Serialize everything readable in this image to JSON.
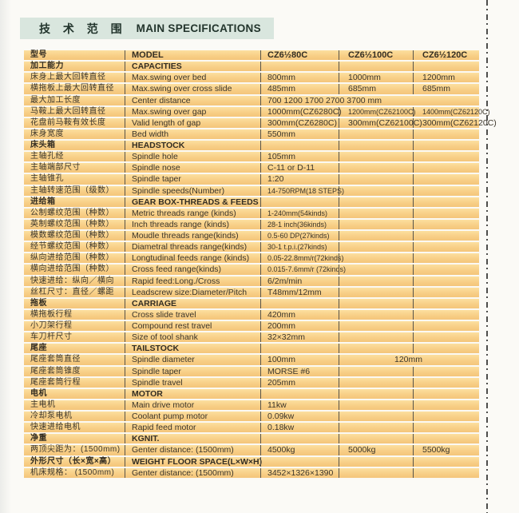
{
  "title": {
    "cn": "技 术 范 围",
    "en": "MAIN SPECIFICATIONS"
  },
  "colors": {
    "row_orange": "#f8cf87",
    "row_separator": "#fbf9f3",
    "column_rule": "#58544a",
    "title_band": "#d9e6de",
    "text": "#3b352a"
  },
  "table": {
    "rows": [
      {
        "type": "header",
        "cn": "型号",
        "en": "MODEL",
        "v1": "CZ6½80C",
        "v2": "CZ6½100C",
        "v3": "CZ6½120C"
      },
      {
        "type": "section",
        "cn": "加工能力",
        "en": "CAPACITIES",
        "v1": "",
        "v2": "",
        "v3": ""
      },
      {
        "type": "data",
        "cn": "床身上最大回转直径",
        "en": "Max.swing over bed",
        "v1": "800mm",
        "v2": "1000mm",
        "v3": "1200mm"
      },
      {
        "type": "data",
        "cn": "横拖板上最大回转直径",
        "en": "Max.swing over cross slide",
        "v1": "485mm",
        "v2": "685mm",
        "v3": "685mm"
      },
      {
        "type": "span",
        "cn": "最大加工长度",
        "en": "Center distance",
        "span": "700  1200  1700  2700  3700  mm"
      },
      {
        "type": "data",
        "cn": "马鞍上最大回转直径",
        "en": "Max.swing over gap",
        "v1": "1000mm(CZ6280C)",
        "v2": "1200mm(CZ62100C)",
        "v3": "1400mm(CZ62120C)"
      },
      {
        "type": "data",
        "cn": "花盘前马鞍有效长度",
        "en": "Valid length of gap",
        "v1": "300mm(CZ6280C)",
        "v2": "300mm(CZ62100C)",
        "v3": "300mm(CZ62120C)"
      },
      {
        "type": "data",
        "cn": "床身宽度",
        "en": "Bed width",
        "v1": "550mm",
        "v2": "",
        "v3": ""
      },
      {
        "type": "section",
        "cn": "床头箱",
        "en": "HEADSTOCK",
        "v1": "",
        "v2": "",
        "v3": ""
      },
      {
        "type": "data",
        "cn": "主轴孔经",
        "en": "Spindle hole",
        "v1": "105mm",
        "v2": "",
        "v3": ""
      },
      {
        "type": "data",
        "cn": "主轴端部尺寸",
        "en": "Spindle nose",
        "v1": "C-11 or D-11",
        "v2": "",
        "v3": ""
      },
      {
        "type": "data",
        "cn": "主轴锥孔",
        "en": "Spindle taper",
        "v1": "1:20",
        "v2": "",
        "v3": ""
      },
      {
        "type": "data",
        "cn": "主轴转速范围（级数）",
        "en": "Spindle speeds(Number)",
        "v1": "14-750RPM(18 STEPS)",
        "v2": "",
        "v3": ""
      },
      {
        "type": "section",
        "cn": "进给箱",
        "en": "GEAR BOX-THREADS & FEEDS",
        "v1": "",
        "v2": "",
        "v3": ""
      },
      {
        "type": "data",
        "cn": "公制螺纹范围（种数）",
        "en": "Metric threads range (kinds)",
        "v1": "1-240mm(54kinds)",
        "v2": "",
        "v3": ""
      },
      {
        "type": "data",
        "cn": "英制螺纹范围（种数）",
        "en": "Inch threads range (kinds)",
        "v1": "28-1 inch(36kinds)",
        "v2": "",
        "v3": ""
      },
      {
        "type": "data",
        "cn": "模数螺纹范围（种数）",
        "en": "Moudle threads range(kinds)",
        "v1": "0.5-60 DP(27kinds)",
        "v2": "",
        "v3": ""
      },
      {
        "type": "data",
        "cn": "经节螺纹范围（种数）",
        "en": "Diametral threads range(kinds)",
        "v1": "30-1 t.p.i.(27kinds)",
        "v2": "",
        "v3": ""
      },
      {
        "type": "data",
        "cn": "纵向进给范围（种数）",
        "en": "Longtudinal feeds range (kinds)",
        "v1": "0.05-22.8mm/r(72kinds)",
        "v2": "",
        "v3": ""
      },
      {
        "type": "data",
        "cn": "横向进给范围（种数）",
        "en": "Cross feed range(kinds)",
        "v1": "0.015-7.6mm/r (72kinds)",
        "v2": "",
        "v3": ""
      },
      {
        "type": "data",
        "cn": "快速进给：纵向／横向",
        "en": "Rapid feed:Long./Cross",
        "v1": "6/2m/min",
        "v2": "",
        "v3": ""
      },
      {
        "type": "data",
        "cn": "丝杠尺寸：直径／螺距",
        "en": "Leadscrew size:Diameter/Pitch",
        "v1": "T48mm/12mm",
        "v2": "",
        "v3": ""
      },
      {
        "type": "section",
        "cn": "拖板",
        "en": "CARRIAGE",
        "v1": "",
        "v2": "",
        "v3": ""
      },
      {
        "type": "data",
        "cn": "横拖板行程",
        "en": "Cross slide travel",
        "v1": "420mm",
        "v2": "",
        "v3": ""
      },
      {
        "type": "data",
        "cn": "小刀架行程",
        "en": "Compound rest travel",
        "v1": "200mm",
        "v2": "",
        "v3": ""
      },
      {
        "type": "data",
        "cn": "车刀杆尺寸",
        "en": "Size of tool shank",
        "v1": "32×32mm",
        "v2": "",
        "v3": ""
      },
      {
        "type": "section",
        "cn": "尾座",
        "en": "TAILSTOCK",
        "v1": "",
        "v2": "",
        "v3": ""
      },
      {
        "type": "span23",
        "cn": "尾座套筒直径",
        "en": "Spindle diameter",
        "v1": "100mm",
        "span23": "120mm"
      },
      {
        "type": "data",
        "cn": "尾座套筒锥度",
        "en": "Spindle taper",
        "v1": "MORSE #6",
        "v2": "",
        "v3": ""
      },
      {
        "type": "data",
        "cn": "尾座套筒行程",
        "en": "Spindle travel",
        "v1": "205mm",
        "v2": "",
        "v3": ""
      },
      {
        "type": "section",
        "cn": "电机",
        "en": "MOTOR",
        "v1": "",
        "v2": "",
        "v3": ""
      },
      {
        "type": "data",
        "cn": "主电机",
        "en": "Main drive motor",
        "v1": "11kw",
        "v2": "",
        "v3": ""
      },
      {
        "type": "data",
        "cn": "冷却泵电机",
        "en": "Coolant pump motor",
        "v1": "0.09kw",
        "v2": "",
        "v3": ""
      },
      {
        "type": "data",
        "cn": "快速进给电机",
        "en": "Rapid feed motor",
        "v1": "0.18kw",
        "v2": "",
        "v3": ""
      },
      {
        "type": "section",
        "cn": "净重",
        "en": "KGNIT.",
        "v1": "",
        "v2": "",
        "v3": ""
      },
      {
        "type": "data",
        "cn": "两顶尖距为：(1500mm)",
        "en": "Genter distance: (1500mm)",
        "v1": "4500kg",
        "v2": "5000kg",
        "v3": "5500kg"
      },
      {
        "type": "section",
        "cn": "外形尺寸（长×宽×高）",
        "en": "WEIGHT FLOOR SPACE(L×W×H)",
        "v1": "",
        "v2": "",
        "v3": ""
      },
      {
        "type": "data",
        "cn": "机床规格：  (1500mm)",
        "en": "Genter distance: (1500mm)",
        "v1": "3452×1326×1390",
        "v2": "",
        "v3": ""
      }
    ]
  }
}
